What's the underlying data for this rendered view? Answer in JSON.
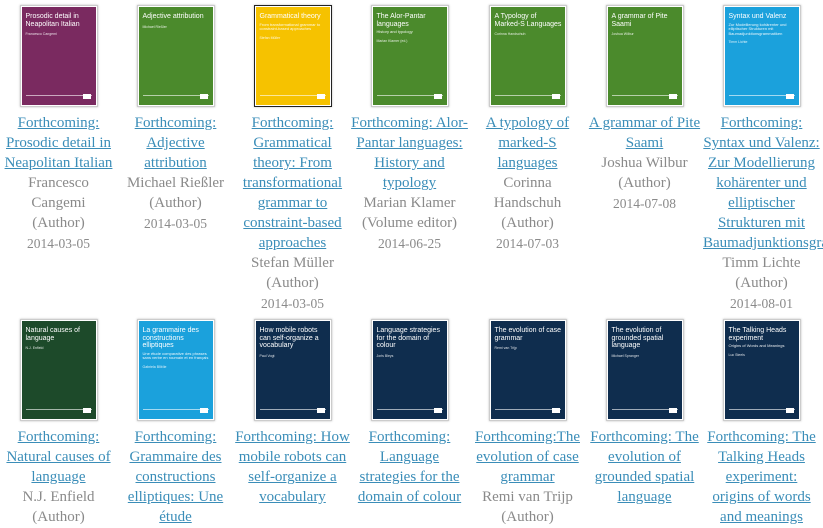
{
  "books": [
    {
      "cover": {
        "title": "Prosodic detail in Neapolitan Italian",
        "author": "Francesco Cangemi",
        "color": "#7a2a60"
      },
      "link": "Forthcoming: Prosodic detail in Neapolitan Italian",
      "author": "Francesco Cangemi",
      "role": "(Author)",
      "date": "2014-03-05"
    },
    {
      "cover": {
        "title": "Adjective attribution",
        "author": "Michael Rießler",
        "color": "#4b8a2c"
      },
      "link": "Forthcoming: Adjective attribution",
      "author": "Michael Rießler",
      "role": "(Author)",
      "date": "2014-03-05"
    },
    {
      "cover": {
        "title": "Grammatical theory",
        "subtitle": "From transformational grammar to constraint-based approaches",
        "author": "Stefan Müller",
        "color": "#f6c200"
      },
      "link": "Forthcoming: Grammatical theory: From transformational grammar to constraint-based approaches",
      "author": "Stefan Müller",
      "role": "(Author)",
      "date": "2014-03-05"
    },
    {
      "cover": {
        "title": "The Alor-Pantar languages",
        "subtitle": "History and typology",
        "author": "Marian Klamer (ed.)",
        "color": "#4b8a2c"
      },
      "link": "Forthcoming: Alor-Pantar languages: History and typology",
      "author": "Marian Klamer",
      "role": "(Volume editor)",
      "date": "2014-06-25"
    },
    {
      "cover": {
        "title": "A Typology of Marked-S Languages",
        "author": "Corinna Handschuh",
        "color": "#4b8a2c"
      },
      "link": "A typology of marked-S languages",
      "author": "Corinna Handschuh",
      "role": "(Author)",
      "date": "2014-07-03"
    },
    {
      "cover": {
        "title": "A grammar of Pite Saami",
        "author": "Joshua Wilbur",
        "color": "#4b8a2c"
      },
      "link": "A grammar of Pite Saami",
      "author": "Joshua Wilbur",
      "role": "(Author)",
      "date": "2014-07-08"
    },
    {
      "cover": {
        "title": "Syntax und Valenz",
        "subtitle": "Zur Modellierung kohärenter und elliptischer Strukturen mit Baumadjunktionsgrammatiken",
        "author": "Timm Lichte",
        "color": "#1ba1dc"
      },
      "link": "Forthcoming: Syntax und Valenz: Zur Modellierung kohärenter und elliptischer Strukturen mit Baumadjunktionsgrammatiken",
      "author": "Timm Lichte",
      "role": "(Author)",
      "date": "2014-08-01"
    },
    {
      "cover": {
        "title": "Natural causes of language",
        "author": "N.J. Enfield",
        "color": "#1d4a2a"
      },
      "link": "Forthcoming: Natural causes of language",
      "author": "N.J. Enfield",
      "role": "(Author)"
    },
    {
      "cover": {
        "title": "La grammaire des constructions elliptiques",
        "subtitle": "Une étude comparative des phrases sans verbe en roumain et en français",
        "author": "Gabriela Bîlbîie",
        "color": "#1ba1dc"
      },
      "link": "Forthcoming: Grammaire des constructions elliptiques: Une étude"
    },
    {
      "cover": {
        "title": "How mobile robots can self-organize a vocabulary",
        "author": "Paul Vogt",
        "color": "#0f2d4e"
      },
      "link": "Forthcoming: How mobile robots can self-organize a vocabulary"
    },
    {
      "cover": {
        "title": "Language strategies for the domain of colour",
        "author": "Joris Bleys",
        "color": "#0f2d4e"
      },
      "link": "Forthcoming: Language strategies for the domain of colour"
    },
    {
      "cover": {
        "title": "The evolution of case grammar",
        "author": "Remi van Trijp",
        "color": "#0f2d4e"
      },
      "link": "Forthcoming:The evolution of case grammar",
      "author": "Remi van Trijp",
      "role": "(Author)"
    },
    {
      "cover": {
        "title": "The evolution of grounded spatial language",
        "author": "Michael Spranger",
        "color": "#0f2d4e"
      },
      "link": "Forthcoming: The evolution of grounded spatial language"
    },
    {
      "cover": {
        "title": "The Talking Heads experiment",
        "subtitle": "Origins of Words and Meanings",
        "author": "Luc Steels",
        "color": "#0f2d4e"
      },
      "link": "Forthcoming: The Talking Heads experiment: origins of words and meanings"
    }
  ]
}
